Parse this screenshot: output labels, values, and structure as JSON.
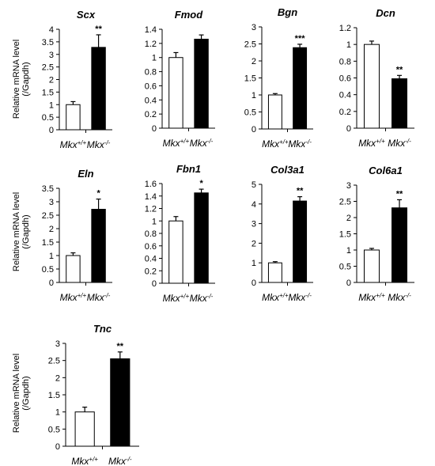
{
  "figure": {
    "ylabel_line1": "Relative mRNA level",
    "ylabel_line2": "(/Gapdh)"
  },
  "chart_data": [
    {
      "type": "bar",
      "title": "Scx",
      "categories": [
        "Mkx+/+",
        "Mkx-/-"
      ],
      "values": [
        1.0,
        3.28
      ],
      "errors": [
        0.12,
        0.5
      ],
      "significance": [
        "",
        "**"
      ],
      "ylim": [
        0,
        4
      ],
      "yticks": [
        "0",
        "0.5",
        "1",
        "1.5",
        "2",
        "2.5",
        "3",
        "3.5",
        "4"
      ],
      "colors": [
        "#ffffff",
        "#000000"
      ]
    },
    {
      "type": "bar",
      "title": "Fmod",
      "categories": [
        "Mkx+/+",
        "Mkx-/-"
      ],
      "values": [
        1.0,
        1.26
      ],
      "errors": [
        0.07,
        0.06
      ],
      "significance": [
        "",
        ""
      ],
      "ylim": [
        0,
        1.4
      ],
      "yticks": [
        "0",
        "0.2",
        "0.4",
        "0.6",
        "0.8",
        "1",
        "1.2",
        "1.4"
      ],
      "colors": [
        "#ffffff",
        "#000000"
      ]
    },
    {
      "type": "bar",
      "title": "Bgn",
      "categories": [
        "Mkx+/+",
        "Mkx-/-"
      ],
      "values": [
        1.0,
        2.39
      ],
      "errors": [
        0.04,
        0.1
      ],
      "significance": [
        "",
        "***"
      ],
      "ylim": [
        0,
        3
      ],
      "yticks": [
        "0",
        "0.5",
        "1",
        "1.5",
        "2",
        "2.5",
        "3"
      ],
      "colors": [
        "#ffffff",
        "#000000"
      ]
    },
    {
      "type": "bar",
      "title": "Dcn",
      "categories": [
        "Mkx+/+",
        "Mkx-/-"
      ],
      "values": [
        1.0,
        0.59
      ],
      "errors": [
        0.04,
        0.04
      ],
      "significance": [
        "",
        "**"
      ],
      "ylim": [
        0,
        1.2
      ],
      "yticks": [
        "0",
        "0.2",
        "0.4",
        "0.6",
        "0.8",
        "1",
        "1.2"
      ],
      "colors": [
        "#ffffff",
        "#000000"
      ]
    },
    {
      "type": "bar",
      "title": "Eln",
      "categories": [
        "Mkx+/+",
        "Mkx-/-"
      ],
      "values": [
        1.0,
        2.72
      ],
      "errors": [
        0.1,
        0.38
      ],
      "significance": [
        "",
        "*"
      ],
      "ylim": [
        0,
        3.5
      ],
      "yticks": [
        "0",
        "0.5",
        "1",
        "1.5",
        "2",
        "2.5",
        "3",
        "3.5"
      ],
      "colors": [
        "#ffffff",
        "#000000"
      ]
    },
    {
      "type": "bar",
      "title": "Fbn1",
      "categories": [
        "Mkx+/+",
        "Mkx-/-"
      ],
      "values": [
        1.0,
        1.45
      ],
      "errors": [
        0.07,
        0.06
      ],
      "significance": [
        "",
        "*"
      ],
      "ylim": [
        0,
        1.6
      ],
      "yticks": [
        "0",
        "0.2",
        "0.4",
        "0.6",
        "0.8",
        "1",
        "1.2",
        "1.4",
        "1.6"
      ],
      "colors": [
        "#ffffff",
        "#000000"
      ]
    },
    {
      "type": "bar",
      "title": "Col3a1",
      "categories": [
        "Mkx+/+",
        "Mkx-/-"
      ],
      "values": [
        1.0,
        4.15
      ],
      "errors": [
        0.06,
        0.22
      ],
      "significance": [
        "",
        "**"
      ],
      "ylim": [
        0,
        5
      ],
      "yticks": [
        "0",
        "1",
        "2",
        "3",
        "4",
        "5"
      ],
      "colors": [
        "#ffffff",
        "#000000"
      ]
    },
    {
      "type": "bar",
      "title": "Col6a1",
      "categories": [
        "Mkx+/+",
        "Mkx-/-"
      ],
      "values": [
        1.0,
        2.3
      ],
      "errors": [
        0.05,
        0.25
      ],
      "significance": [
        "",
        "**"
      ],
      "ylim": [
        0,
        3
      ],
      "yticks": [
        "0",
        "0.5",
        "1",
        "1.5",
        "2",
        "2.5",
        "3"
      ],
      "colors": [
        "#ffffff",
        "#000000"
      ]
    },
    {
      "type": "bar",
      "title": "Tnc",
      "categories": [
        "Mkx+/+",
        "Mkx-/-"
      ],
      "values": [
        1.0,
        2.55
      ],
      "errors": [
        0.14,
        0.2
      ],
      "significance": [
        "",
        "**"
      ],
      "ylim": [
        0,
        3
      ],
      "yticks": [
        "0",
        "0.5",
        "1",
        "1.5",
        "2",
        "2.5",
        "3"
      ],
      "colors": [
        "#ffffff",
        "#000000"
      ]
    }
  ]
}
